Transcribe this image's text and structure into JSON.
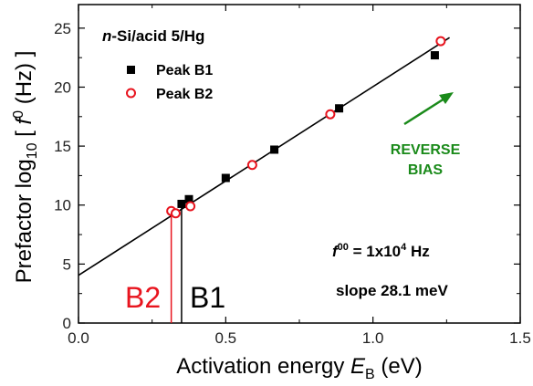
{
  "chart_data": {
    "type": "scatter",
    "title": "",
    "sample_label": {
      "italic": "n",
      "rest": "-Si/acid 5/Hg"
    },
    "xlabel": {
      "main": "Activation energy ",
      "italic": "E",
      "sub": "B",
      "unit": " (eV)"
    },
    "ylabel": {
      "prefix": "Prefactor  log",
      "sub": "10",
      "open": " [ ",
      "italic": "f",
      "sup": "0",
      "unit": " (Hz) ]"
    },
    "xlim": [
      0.0,
      1.5
    ],
    "ylim": [
      0,
      27
    ],
    "xticks": [
      "0.0",
      "0.5",
      "1.0",
      "1.5"
    ],
    "xtick_values": [
      0.0,
      0.5,
      1.0,
      1.5
    ],
    "yticks": [
      "0",
      "5",
      "10",
      "15",
      "20",
      "25"
    ],
    "ytick_values": [
      0,
      5,
      10,
      15,
      20,
      25
    ],
    "series": [
      {
        "name": "Peak B1",
        "marker": "filled-square",
        "color": "#000000",
        "x": [
          0.35,
          0.375,
          0.5,
          0.665,
          0.885,
          1.21
        ],
        "y": [
          10.1,
          10.5,
          12.3,
          14.7,
          18.2,
          22.7
        ]
      },
      {
        "name": "Peak B2",
        "marker": "open-circle",
        "color": "#e8141e",
        "x": [
          0.315,
          0.33,
          0.38,
          0.59,
          0.855,
          1.23
        ],
        "y": [
          9.5,
          9.3,
          9.9,
          13.4,
          17.7,
          23.9
        ]
      }
    ],
    "fit_line": {
      "x": [
        0.0,
        1.26
      ],
      "y": [
        4.05,
        24.2
      ],
      "color": "#000000"
    },
    "markers_vertical": [
      {
        "label": "B2",
        "x": 0.315,
        "y": 9.5,
        "color": "#e8141e"
      },
      {
        "label": "B1",
        "x": 0.35,
        "y": 10.1,
        "color": "#000000"
      }
    ],
    "annotations": {
      "reverse_bias": [
        "REVERSE",
        "BIAS"
      ],
      "reverse_bias_color": "#1a8a1a",
      "f00": {
        "italic": "f",
        "sup": "00",
        "rest": " = 1x10",
        "exp": "4",
        "unit": " Hz"
      },
      "slope": "slope  28.1 meV"
    },
    "legend_position": "upper-left"
  }
}
